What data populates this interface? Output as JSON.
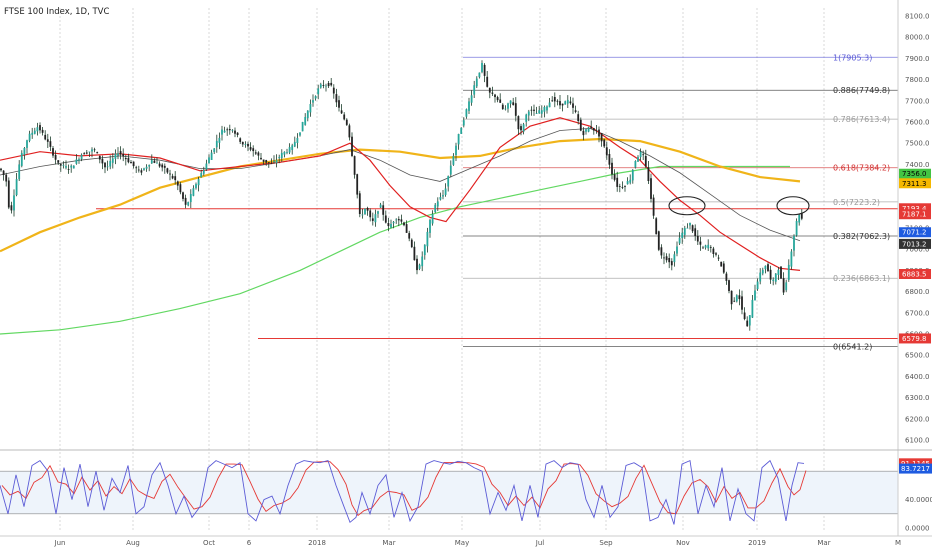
{
  "chart_data": {
    "type": "candlestick",
    "title": "FTSE 100 Index, 1D, TVC",
    "x_labels": [
      "Jun",
      "Aug",
      "Oct",
      "6",
      "2018",
      "Mar",
      "May",
      "Jul",
      "Sep",
      "Nov",
      "2019",
      "Mar",
      "M"
    ],
    "y_ticks": [
      6100,
      6200,
      6300,
      6400,
      6500,
      6600,
      6700,
      6800,
      6900,
      7000,
      7100,
      7200,
      7300,
      7400,
      7500,
      7600,
      7700,
      7800,
      7900,
      8000,
      8100
    ],
    "ylim": [
      6040,
      8130
    ],
    "grid": true,
    "price_path": [
      [
        0,
        7380
      ],
      [
        6,
        7330
      ],
      [
        10,
        7150
      ],
      [
        15,
        7290
      ],
      [
        20,
        7420
      ],
      [
        28,
        7530
      ],
      [
        38,
        7580
      ],
      [
        48,
        7500
      ],
      [
        58,
        7400
      ],
      [
        70,
        7380
      ],
      [
        82,
        7450
      ],
      [
        94,
        7470
      ],
      [
        106,
        7380
      ],
      [
        118,
        7460
      ],
      [
        130,
        7410
      ],
      [
        140,
        7360
      ],
      [
        152,
        7420
      ],
      [
        164,
        7380
      ],
      [
        176,
        7320
      ],
      [
        186,
        7200
      ],
      [
        196,
        7310
      ],
      [
        206,
        7400
      ],
      [
        214,
        7480
      ],
      [
        222,
        7560
      ],
      [
        232,
        7570
      ],
      [
        242,
        7500
      ],
      [
        252,
        7470
      ],
      [
        262,
        7420
      ],
      [
        272,
        7400
      ],
      [
        282,
        7450
      ],
      [
        292,
        7480
      ],
      [
        300,
        7560
      ],
      [
        310,
        7680
      ],
      [
        320,
        7770
      ],
      [
        330,
        7780
      ],
      [
        340,
        7650
      ],
      [
        348,
        7580
      ],
      [
        354,
        7380
      ],
      [
        360,
        7150
      ],
      [
        366,
        7200
      ],
      [
        372,
        7120
      ],
      [
        380,
        7210
      ],
      [
        388,
        7100
      ],
      [
        396,
        7150
      ],
      [
        404,
        7120
      ],
      [
        412,
        7000
      ],
      [
        418,
        6890
      ],
      [
        424,
        7000
      ],
      [
        430,
        7130
      ],
      [
        436,
        7220
      ],
      [
        444,
        7260
      ],
      [
        452,
        7420
      ],
      [
        460,
        7560
      ],
      [
        468,
        7680
      ],
      [
        476,
        7800
      ],
      [
        482,
        7870
      ],
      [
        488,
        7740
      ],
      [
        496,
        7720
      ],
      [
        504,
        7650
      ],
      [
        512,
        7710
      ],
      [
        520,
        7540
      ],
      [
        528,
        7660
      ],
      [
        536,
        7640
      ],
      [
        544,
        7660
      ],
      [
        552,
        7710
      ],
      [
        560,
        7680
      ],
      [
        568,
        7700
      ],
      [
        576,
        7640
      ],
      [
        582,
        7540
      ],
      [
        590,
        7580
      ],
      [
        598,
        7550
      ],
      [
        606,
        7460
      ],
      [
        612,
        7360
      ],
      [
        618,
        7290
      ],
      [
        624,
        7300
      ],
      [
        630,
        7330
      ],
      [
        636,
        7430
      ],
      [
        642,
        7460
      ],
      [
        648,
        7340
      ],
      [
        654,
        7140
      ],
      [
        660,
        6970
      ],
      [
        666,
        6960
      ],
      [
        672,
        6930
      ],
      [
        678,
        7040
      ],
      [
        684,
        7090
      ],
      [
        690,
        7120
      ],
      [
        696,
        7050
      ],
      [
        702,
        7000
      ],
      [
        708,
        7020
      ],
      [
        714,
        6980
      ],
      [
        720,
        6940
      ],
      [
        726,
        6860
      ],
      [
        732,
        6740
      ],
      [
        738,
        6800
      ],
      [
        742,
        6710
      ],
      [
        748,
        6620
      ],
      [
        752,
        6760
      ],
      [
        758,
        6860
      ],
      [
        762,
        6900
      ],
      [
        766,
        6930
      ],
      [
        772,
        6830
      ],
      [
        778,
        6920
      ],
      [
        784,
        6790
      ],
      [
        790,
        6960
      ],
      [
        796,
        7120
      ],
      [
        800,
        7180
      ],
      [
        804,
        7100
      ]
    ],
    "ma_red": [
      [
        0,
        7420
      ],
      [
        40,
        7460
      ],
      [
        80,
        7440
      ],
      [
        120,
        7450
      ],
      [
        160,
        7430
      ],
      [
        200,
        7370
      ],
      [
        240,
        7390
      ],
      [
        280,
        7410
      ],
      [
        320,
        7440
      ],
      [
        350,
        7500
      ],
      [
        370,
        7420
      ],
      [
        390,
        7300
      ],
      [
        410,
        7200
      ],
      [
        430,
        7150
      ],
      [
        446,
        7130
      ],
      [
        470,
        7280
      ],
      [
        500,
        7480
      ],
      [
        530,
        7580
      ],
      [
        560,
        7620
      ],
      [
        590,
        7580
      ],
      [
        620,
        7480
      ],
      [
        640,
        7420
      ],
      [
        660,
        7320
      ],
      [
        680,
        7230
      ],
      [
        700,
        7160
      ],
      [
        720,
        7080
      ],
      [
        740,
        7020
      ],
      [
        760,
        6960
      ],
      [
        780,
        6910
      ],
      [
        800,
        6900
      ]
    ],
    "ma_gray": [
      [
        0,
        7350
      ],
      [
        40,
        7390
      ],
      [
        80,
        7420
      ],
      [
        120,
        7440
      ],
      [
        160,
        7420
      ],
      [
        200,
        7380
      ],
      [
        240,
        7380
      ],
      [
        280,
        7410
      ],
      [
        320,
        7440
      ],
      [
        350,
        7470
      ],
      [
        380,
        7420
      ],
      [
        410,
        7350
      ],
      [
        440,
        7320
      ],
      [
        470,
        7380
      ],
      [
        500,
        7440
      ],
      [
        530,
        7510
      ],
      [
        560,
        7560
      ],
      [
        590,
        7570
      ],
      [
        620,
        7510
      ],
      [
        650,
        7440
      ],
      [
        680,
        7360
      ],
      [
        710,
        7260
      ],
      [
        740,
        7160
      ],
      [
        770,
        7090
      ],
      [
        800,
        7040
      ]
    ],
    "ma_orange": [
      [
        0,
        6990
      ],
      [
        40,
        7080
      ],
      [
        80,
        7150
      ],
      [
        120,
        7210
      ],
      [
        160,
        7290
      ],
      [
        200,
        7340
      ],
      [
        240,
        7390
      ],
      [
        280,
        7420
      ],
      [
        320,
        7450
      ],
      [
        360,
        7470
      ],
      [
        400,
        7460
      ],
      [
        440,
        7430
      ],
      [
        480,
        7440
      ],
      [
        520,
        7480
      ],
      [
        560,
        7510
      ],
      [
        600,
        7520
      ],
      [
        640,
        7510
      ],
      [
        680,
        7460
      ],
      [
        720,
        7390
      ],
      [
        760,
        7340
      ],
      [
        800,
        7320
      ]
    ],
    "ma_green": [
      [
        0,
        6600
      ],
      [
        60,
        6620
      ],
      [
        120,
        6660
      ],
      [
        180,
        6720
      ],
      [
        240,
        6790
      ],
      [
        300,
        6900
      ],
      [
        340,
        6990
      ],
      [
        380,
        7080
      ],
      [
        420,
        7150
      ],
      [
        460,
        7200
      ],
      [
        500,
        7240
      ],
      [
        540,
        7280
      ],
      [
        580,
        7320
      ],
      [
        620,
        7360
      ],
      [
        660,
        7390
      ],
      [
        700,
        7390
      ],
      [
        740,
        7390
      ],
      [
        790,
        7390
      ]
    ],
    "fib_levels": [
      {
        "value": 7905.3,
        "label": "1(7905.3)",
        "color": "#5b5bd6"
      },
      {
        "value": 7749.8,
        "label": "0.886(7749.8)",
        "color": "#333333"
      },
      {
        "value": 7613.4,
        "label": "0.786(7613.4)",
        "color": "#999999"
      },
      {
        "value": 7384.2,
        "label": "0.618(7384.2)",
        "color": "#d23030"
      },
      {
        "value": 7223.2,
        "label": "0.5(7223.2)",
        "color": "#999999"
      },
      {
        "value": 7062.3,
        "label": "0.382(7062.3)",
        "color": "#333333"
      },
      {
        "value": 6863.1,
        "label": "0.236(6863.1)",
        "color": "#999999"
      },
      {
        "value": 6541.2,
        "label": "0(6541.2)",
        "color": "#333333"
      }
    ],
    "horizontal_lines": [
      {
        "value": 7191,
        "color": "#e53935"
      },
      {
        "value": 6579,
        "color": "#e53935"
      }
    ],
    "price_tags": [
      {
        "label": "7356.0",
        "bg": "#43c443",
        "fg": "#000000",
        "value": 7356
      },
      {
        "label": "7311.3",
        "bg": "#f5b800",
        "fg": "#000000",
        "value": 7311
      },
      {
        "label": "7193.4",
        "bg": "#e53935",
        "fg": "#ffffff",
        "value": 7193
      },
      {
        "label": "7187.1",
        "bg": "#e53935",
        "fg": "#ffffff",
        "value": 7165
      },
      {
        "label": "7071.2",
        "bg": "#1e5be0",
        "fg": "#ffffff",
        "value": 7080
      },
      {
        "label": "7013.2",
        "bg": "#333333",
        "fg": "#ffffff",
        "value": 7025
      },
      {
        "label": "6883.5",
        "bg": "#e53935",
        "fg": "#ffffff",
        "value": 6883
      },
      {
        "label": "6579.8",
        "bg": "#e53935",
        "fg": "#ffffff",
        "value": 6579
      }
    ],
    "oscillator": {
      "type": "stochastic",
      "y_ticks": [
        "40.0000",
        "0.0000"
      ],
      "tags": [
        {
          "label": "91.1145",
          "bg": "#e53935",
          "value": 91.1
        },
        {
          "label": "83.7217",
          "bg": "#1e5be0",
          "value": 83.7
        }
      ],
      "k_path": [
        [
          0,
          60
        ],
        [
          8,
          20
        ],
        [
          16,
          75
        ],
        [
          24,
          30
        ],
        [
          32,
          88
        ],
        [
          40,
          95
        ],
        [
          48,
          80
        ],
        [
          56,
          20
        ],
        [
          64,
          85
        ],
        [
          72,
          40
        ],
        [
          80,
          90
        ],
        [
          88,
          30
        ],
        [
          96,
          80
        ],
        [
          104,
          25
        ],
        [
          112,
          70
        ],
        [
          120,
          50
        ],
        [
          128,
          88
        ],
        [
          136,
          20
        ],
        [
          144,
          30
        ],
        [
          152,
          75
        ],
        [
          160,
          92
        ],
        [
          168,
          60
        ],
        [
          176,
          20
        ],
        [
          184,
          45
        ],
        [
          192,
          15
        ],
        [
          200,
          30
        ],
        [
          208,
          85
        ],
        [
          216,
          95
        ],
        [
          224,
          90
        ],
        [
          232,
          85
        ],
        [
          240,
          92
        ],
        [
          248,
          20
        ],
        [
          256,
          10
        ],
        [
          264,
          40
        ],
        [
          272,
          45
        ],
        [
          280,
          20
        ],
        [
          288,
          60
        ],
        [
          296,
          90
        ],
        [
          304,
          95
        ],
        [
          312,
          93
        ],
        [
          320,
          92
        ],
        [
          328,
          95
        ],
        [
          336,
          60
        ],
        [
          344,
          30
        ],
        [
          350,
          8
        ],
        [
          356,
          15
        ],
        [
          362,
          50
        ],
        [
          370,
          20
        ],
        [
          378,
          60
        ],
        [
          386,
          75
        ],
        [
          394,
          15
        ],
        [
          402,
          50
        ],
        [
          410,
          10
        ],
        [
          418,
          30
        ],
        [
          426,
          90
        ],
        [
          434,
          95
        ],
        [
          442,
          92
        ],
        [
          450,
          90
        ],
        [
          458,
          94
        ],
        [
          466,
          92
        ],
        [
          474,
          85
        ],
        [
          482,
          80
        ],
        [
          490,
          20
        ],
        [
          498,
          50
        ],
        [
          506,
          25
        ],
        [
          514,
          60
        ],
        [
          522,
          10
        ],
        [
          530,
          60
        ],
        [
          538,
          15
        ],
        [
          546,
          90
        ],
        [
          554,
          95
        ],
        [
          562,
          85
        ],
        [
          570,
          92
        ],
        [
          578,
          90
        ],
        [
          586,
          40
        ],
        [
          594,
          15
        ],
        [
          602,
          60
        ],
        [
          610,
          15
        ],
        [
          618,
          30
        ],
        [
          626,
          88
        ],
        [
          634,
          92
        ],
        [
          642,
          85
        ],
        [
          650,
          10
        ],
        [
          658,
          15
        ],
        [
          666,
          40
        ],
        [
          674,
          5
        ],
        [
          682,
          90
        ],
        [
          690,
          95
        ],
        [
          698,
          20
        ],
        [
          706,
          60
        ],
        [
          714,
          30
        ],
        [
          722,
          85
        ],
        [
          730,
          10
        ],
        [
          738,
          55
        ],
        [
          746,
          20
        ],
        [
          754,
          10
        ],
        [
          762,
          85
        ],
        [
          770,
          95
        ],
        [
          778,
          70
        ],
        [
          786,
          10
        ],
        [
          792,
          60
        ],
        [
          798,
          92
        ],
        [
          804,
          91
        ]
      ]
    }
  }
}
